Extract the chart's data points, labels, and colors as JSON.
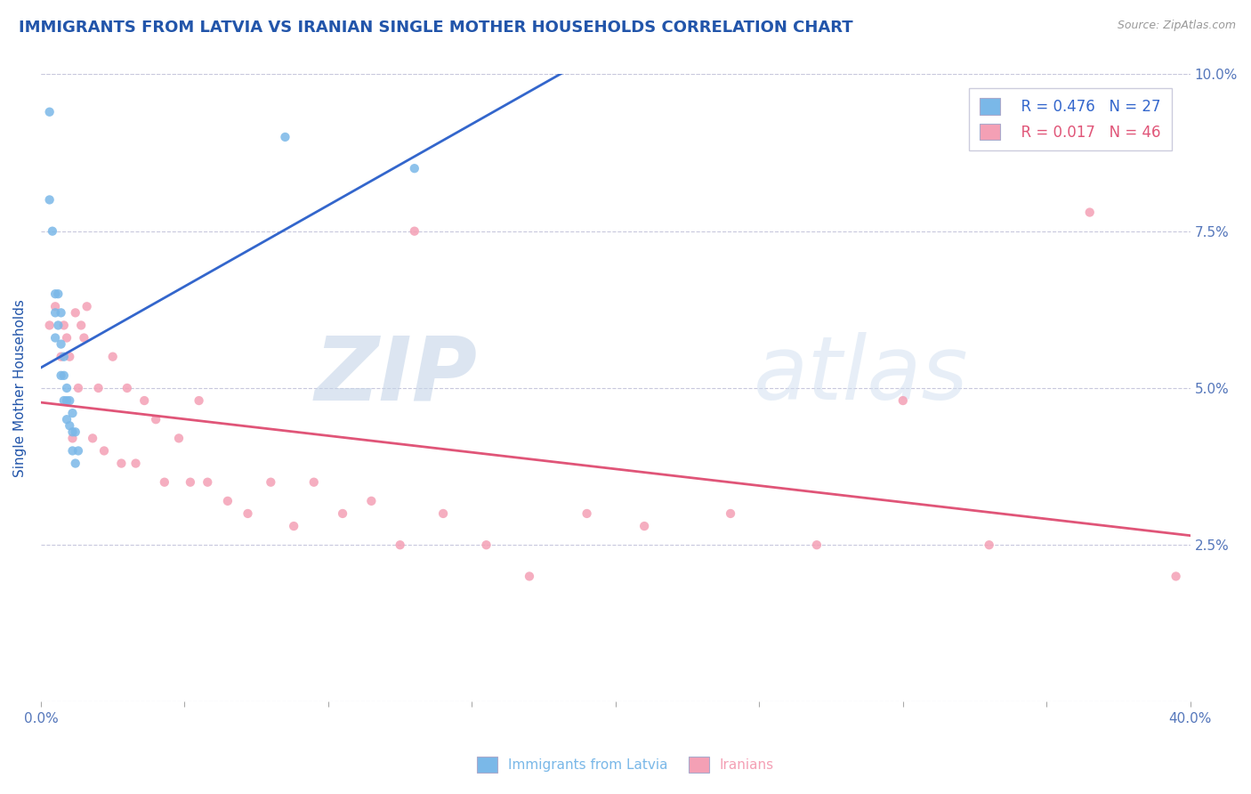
{
  "title": "IMMIGRANTS FROM LATVIA VS IRANIAN SINGLE MOTHER HOUSEHOLDS CORRELATION CHART",
  "source_text": "Source: ZipAtlas.com",
  "ylabel": "Single Mother Households",
  "xlim": [
    0.0,
    0.4
  ],
  "ylim": [
    0.0,
    0.1
  ],
  "xticks": [
    0.0,
    0.05,
    0.1,
    0.15,
    0.2,
    0.25,
    0.3,
    0.35,
    0.4
  ],
  "yticks": [
    0.0,
    0.025,
    0.05,
    0.075,
    0.1
  ],
  "ytick_labels": [
    "",
    "2.5%",
    "5.0%",
    "7.5%",
    "10.0%"
  ],
  "legend_r1": "R = 0.476",
  "legend_n1": "N = 27",
  "legend_r2": "R = 0.017",
  "legend_n2": "N = 46",
  "color_latvia": "#7ab8e8",
  "color_iranians": "#f4a0b5",
  "color_trendline_latvia": "#3366cc",
  "color_trendline_iranians": "#e05578",
  "color_title": "#2255aa",
  "color_tick": "#5577bb",
  "watermark_zip": "ZIP",
  "watermark_atlas": "atlas",
  "grid_color": "#c8c8dd",
  "bg_color": "#ffffff",
  "title_fontsize": 13,
  "axis_fontsize": 11,
  "tick_fontsize": 11,
  "scatter_size": 55,
  "latvia_x": [
    0.003,
    0.003,
    0.004,
    0.005,
    0.005,
    0.005,
    0.006,
    0.006,
    0.007,
    0.007,
    0.007,
    0.008,
    0.008,
    0.008,
    0.009,
    0.009,
    0.009,
    0.01,
    0.01,
    0.011,
    0.011,
    0.011,
    0.012,
    0.012,
    0.013,
    0.085,
    0.13
  ],
  "latvia_y": [
    0.094,
    0.08,
    0.075,
    0.065,
    0.062,
    0.058,
    0.065,
    0.06,
    0.062,
    0.057,
    0.052,
    0.055,
    0.052,
    0.048,
    0.05,
    0.048,
    0.045,
    0.048,
    0.044,
    0.046,
    0.043,
    0.04,
    0.043,
    0.038,
    0.04,
    0.09,
    0.085
  ],
  "iran_x": [
    0.003,
    0.005,
    0.007,
    0.008,
    0.009,
    0.01,
    0.011,
    0.012,
    0.013,
    0.014,
    0.015,
    0.016,
    0.018,
    0.02,
    0.022,
    0.025,
    0.028,
    0.03,
    0.033,
    0.036,
    0.04,
    0.043,
    0.048,
    0.052,
    0.058,
    0.065,
    0.072,
    0.08,
    0.088,
    0.095,
    0.105,
    0.115,
    0.125,
    0.14,
    0.155,
    0.17,
    0.19,
    0.21,
    0.24,
    0.27,
    0.3,
    0.33,
    0.365,
    0.395,
    0.055,
    0.13
  ],
  "iran_y": [
    0.06,
    0.063,
    0.055,
    0.06,
    0.058,
    0.055,
    0.042,
    0.062,
    0.05,
    0.06,
    0.058,
    0.063,
    0.042,
    0.05,
    0.04,
    0.055,
    0.038,
    0.05,
    0.038,
    0.048,
    0.045,
    0.035,
    0.042,
    0.035,
    0.035,
    0.032,
    0.03,
    0.035,
    0.028,
    0.035,
    0.03,
    0.032,
    0.025,
    0.03,
    0.025,
    0.02,
    0.03,
    0.028,
    0.03,
    0.025,
    0.048,
    0.025,
    0.078,
    0.02,
    0.048,
    0.075
  ]
}
